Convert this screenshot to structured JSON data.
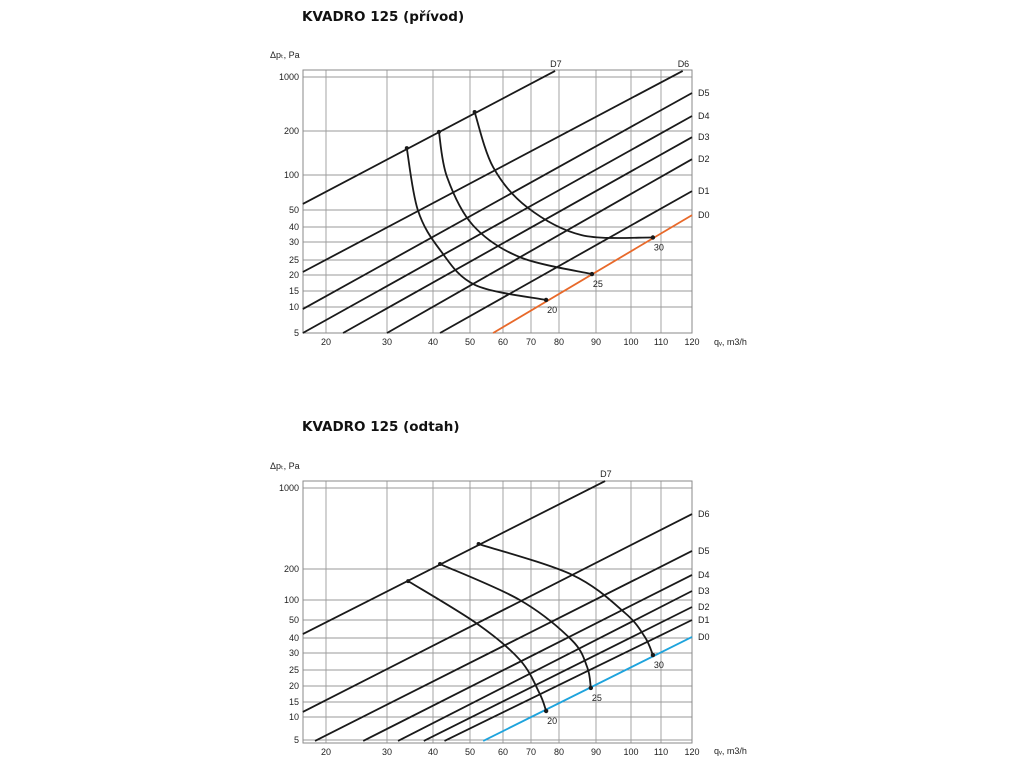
{
  "chart_data": [
    {
      "type": "line",
      "title": "KVADRO 125 (přívod)",
      "xlabel": "qᵥ, m3/h",
      "ylabel": "Δpₜ, Pa",
      "x_ticks": [
        20,
        30,
        40,
        50,
        60,
        70,
        80,
        90,
        100,
        110,
        120
      ],
      "y_ticks": [
        5,
        10,
        15,
        20,
        25,
        30,
        40,
        50,
        100,
        200,
        1000
      ],
      "grid": true,
      "series": [
        {
          "name": "D7",
          "color": "#1a1a1a",
          "points": [
            [
              16.2,
              58.6
            ],
            [
              78.6,
              1090
            ]
          ]
        },
        {
          "name": "D6",
          "color": "#1a1a1a",
          "points": [
            [
              16.2,
              21
            ],
            [
              117,
              1090
            ]
          ]
        },
        {
          "name": "D5",
          "color": "#1a1a1a",
          "points": [
            [
              16.2,
              9.6
            ],
            [
              120,
              763
            ]
          ]
        },
        {
          "name": "D4",
          "color": "#1a1a1a",
          "points": [
            [
              16.2,
              5
            ],
            [
              120,
              422
            ]
          ]
        },
        {
          "name": "D3",
          "color": "#1a1a1a",
          "points": [
            [
              22.8,
              5
            ],
            [
              120,
              186
            ]
          ]
        },
        {
          "name": "D2",
          "color": "#1a1a1a",
          "points": [
            [
              30,
              5
            ],
            [
              120,
              136
            ]
          ]
        },
        {
          "name": "D1",
          "color": "#1a1a1a",
          "points": [
            [
              41.9,
              5
            ],
            [
              120,
              77
            ]
          ]
        },
        {
          "name": "D0",
          "color": "#e8692a",
          "points": [
            [
              57,
              5
            ],
            [
              120,
              47
            ]
          ]
        }
      ],
      "curves": [
        {
          "name": "20",
          "points": [
            [
              34.3,
              161
            ],
            [
              36.7,
              50
            ],
            [
              41.9,
              27.8
            ],
            [
              51.5,
              16.9
            ],
            [
              75.4,
              12.2
            ]
          ]
        },
        {
          "name": "25",
          "points": [
            [
              41.6,
              198
            ],
            [
              43.8,
              97
            ],
            [
              50.9,
              41
            ],
            [
              66,
              25.8
            ],
            [
              88.9,
              20.3
            ]
          ]
        },
        {
          "name": "30",
          "points": [
            [
              51.4,
              481
            ],
            [
              57,
              118
            ],
            [
              68.6,
              54
            ],
            [
              86.1,
              34.6
            ],
            [
              107.3,
              33
            ]
          ]
        }
      ]
    },
    {
      "type": "line",
      "title": "KVADRO 125 (odtah)",
      "xlabel": "qᵥ, m3/h",
      "ylabel": "Δpₜ, Pa",
      "x_ticks": [
        20,
        30,
        40,
        50,
        60,
        70,
        80,
        90,
        100,
        110,
        120
      ],
      "y_ticks": [
        5,
        10,
        15,
        20,
        25,
        30,
        40,
        50,
        100,
        200,
        1000
      ],
      "grid": true,
      "series": [
        {
          "name": "D7",
          "color": "#1a1a1a",
          "points": [
            [
              16.2,
              42.2
            ],
            [
              92.6,
              1069
            ]
          ]
        },
        {
          "name": "D6",
          "color": "#1a1a1a",
          "points": [
            [
              16.2,
              11.7
            ],
            [
              120,
              743
            ]
          ]
        },
        {
          "name": "D5",
          "color": "#1a1a1a",
          "points": [
            [
              18.2,
              4.8
            ],
            [
              120,
              378
            ]
          ]
        },
        {
          "name": "D4",
          "color": "#1a1a1a",
          "points": [
            [
              26.1,
              4.8
            ],
            [
              120,
              181
            ]
          ]
        },
        {
          "name": "D3",
          "color": "#1a1a1a",
          "points": [
            [
              32.4,
              4.8
            ],
            [
              120,
              129
            ]
          ]
        },
        {
          "name": "D2",
          "color": "#1a1a1a",
          "points": [
            [
              38,
              4.8
            ],
            [
              120,
              82.5
            ]
          ]
        },
        {
          "name": "D1",
          "color": "#1a1a1a",
          "points": [
            [
              43.1,
              4.8
            ],
            [
              120,
              50
            ]
          ]
        },
        {
          "name": "D0",
          "color": "#1ea3dc",
          "points": [
            [
              54,
              4.8
            ],
            [
              120,
              40.6
            ]
          ]
        }
      ],
      "curves": [
        {
          "name": "20",
          "points": [
            [
              34.6,
              161
            ],
            [
              52.1,
              48
            ],
            [
              66,
              28
            ],
            [
              73,
              17.8
            ],
            [
              75.4,
              12
            ]
          ]
        },
        {
          "name": "25",
          "points": [
            [
              41.9,
              249
            ],
            [
              66,
              100
            ],
            [
              83.4,
              38.7
            ],
            [
              87.6,
              25.9
            ],
            [
              88.6,
              19.4
            ]
          ]
        },
        {
          "name": "30",
          "points": [
            [
              52.6,
              447
            ],
            [
              83.6,
              181
            ],
            [
              98.3,
              67.5
            ],
            [
              104.6,
              40.6
            ],
            [
              107.3,
              29.4
            ]
          ]
        }
      ]
    }
  ]
}
